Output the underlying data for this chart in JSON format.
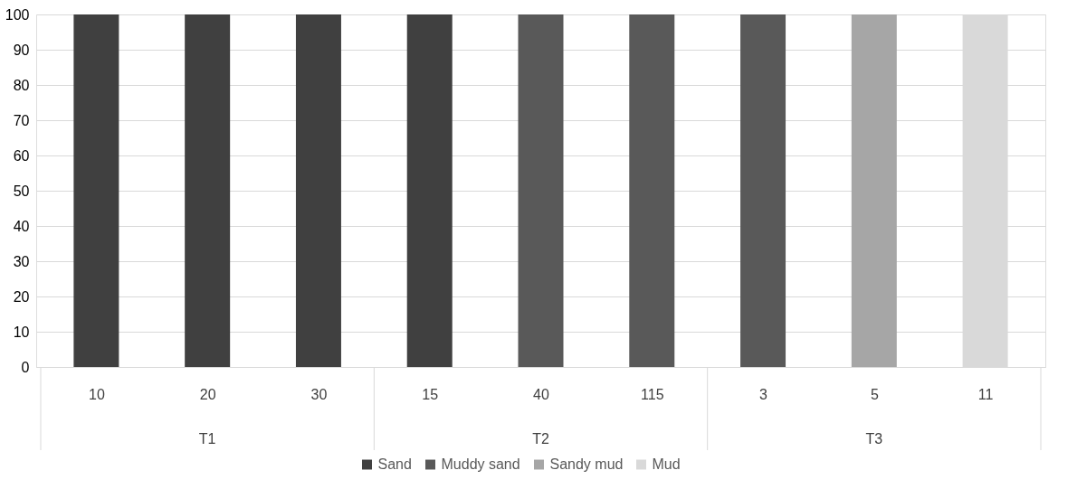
{
  "chart_data": {
    "type": "bar",
    "stacked": true,
    "categories": [
      "10",
      "20",
      "30",
      "15",
      "40",
      "115",
      "3",
      "5",
      "11"
    ],
    "series": [
      {
        "name": "Sand",
        "color": "#404040",
        "values": [
          100,
          100,
          100,
          100,
          null,
          null,
          null,
          null,
          null
        ]
      },
      {
        "name": "Muddy sand",
        "color": "#595959",
        "values": [
          null,
          null,
          null,
          null,
          100,
          100,
          100,
          null,
          null
        ]
      },
      {
        "name": "Sandy mud",
        "color": "#a6a6a6",
        "values": [
          null,
          null,
          null,
          null,
          null,
          null,
          null,
          100,
          null
        ]
      },
      {
        "name": "Mud",
        "color": "#d9d9d9",
        "values": [
          null,
          null,
          null,
          null,
          null,
          null,
          null,
          null,
          100
        ]
      }
    ],
    "annotations": [
      "T1",
      "T2",
      "T3"
    ],
    "ylim": [
      0,
      100
    ],
    "yticks": [
      0,
      10,
      20,
      30,
      40,
      50,
      60,
      70,
      80,
      90,
      100
    ],
    "grid": "y",
    "legend": "bottom"
  }
}
